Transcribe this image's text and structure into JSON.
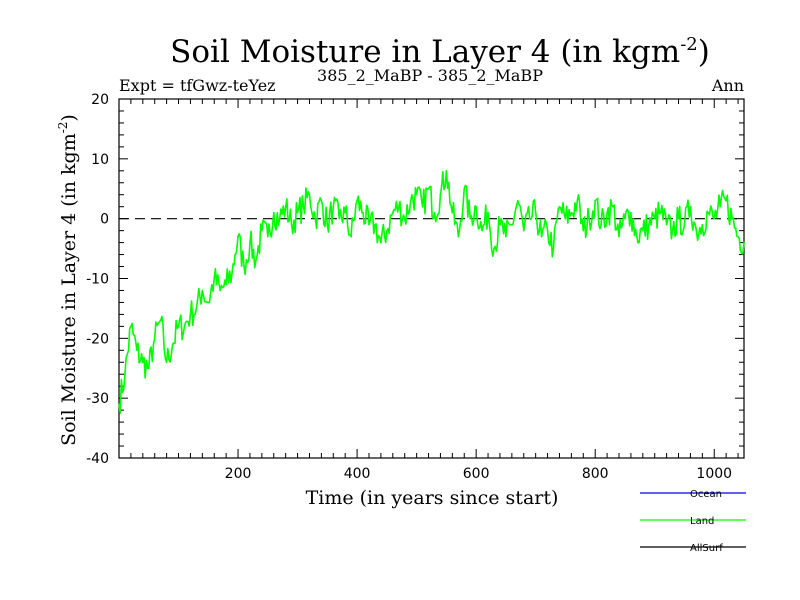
{
  "chart_data": {
    "type": "line",
    "title": "Soil Moisture in Layer 4 (in kgm",
    "title_sup": "-2",
    "title_close": ")",
    "subtitle_left": "Expt = tfGwz-teYez",
    "subtitle_center": "385_2_MaBP - 385_2_MaBP",
    "subtitle_right": "Ann",
    "xlabel": "Time (in years since start)",
    "ylabel": "Soil Moisture in Layer 4 (in kgm",
    "ylabel_sup": "-2",
    "ylabel_close": ")",
    "xlim": [
      0,
      1050
    ],
    "ylim": [
      -40,
      20
    ],
    "xticks": [
      200,
      400,
      600,
      800,
      1000
    ],
    "yticks": [
      20,
      10,
      0,
      -10,
      -20,
      -30,
      -40
    ],
    "reference_line": 0,
    "legend": [
      {
        "name": "Ocean",
        "color": "#0000ff"
      },
      {
        "name": "Land",
        "color": "#00ff00"
      },
      {
        "name": "AllSurf",
        "color": "#000000"
      }
    ],
    "series": [
      {
        "name": "Land",
        "color": "#00ff00",
        "x": [
          0,
          10,
          20,
          30,
          40,
          50,
          60,
          70,
          80,
          90,
          100,
          110,
          120,
          130,
          140,
          150,
          160,
          170,
          180,
          190,
          195,
          200,
          210,
          220,
          230,
          240,
          250,
          260,
          270,
          280,
          290,
          300,
          310,
          320,
          330,
          340,
          350,
          360,
          370,
          380,
          390,
          400,
          410,
          420,
          430,
          440,
          450,
          460,
          470,
          480,
          490,
          500,
          510,
          520,
          530,
          540,
          550,
          560,
          570,
          580,
          590,
          600,
          610,
          620,
          630,
          640,
          650,
          660,
          670,
          680,
          690,
          700,
          710,
          720,
          730,
          740,
          750,
          760,
          770,
          780,
          790,
          800,
          810,
          820,
          830,
          840,
          850,
          860,
          870,
          880,
          890,
          900,
          910,
          920,
          930,
          940,
          950,
          960,
          970,
          980,
          990,
          1000,
          1010,
          1020,
          1030,
          1040,
          1050
        ],
        "values": [
          -31,
          -26,
          -18,
          -22,
          -24,
          -25,
          -20,
          -17,
          -24,
          -21,
          -18,
          -18,
          -16,
          -15,
          -12,
          -14,
          -10,
          -12,
          -11,
          -9,
          -6,
          -3,
          -8,
          -4,
          -7,
          -2,
          -3,
          1,
          0,
          2,
          -1,
          1,
          2,
          4,
          0,
          3,
          -1,
          2,
          0,
          1,
          -3,
          3,
          1,
          -1,
          -1,
          -4,
          -2,
          1,
          2,
          0,
          3,
          4,
          2,
          5,
          1,
          4,
          8,
          1,
          -3,
          5,
          0,
          2,
          -2,
          1,
          -5,
          -1,
          -3,
          -1,
          3,
          -2,
          0,
          1,
          -3,
          -2,
          -5,
          2,
          0,
          1,
          3,
          -2,
          0,
          3,
          -1,
          1,
          2,
          -3,
          0,
          1,
          -3,
          -2,
          -1,
          0,
          1,
          -1,
          -2,
          0,
          -1,
          2,
          -2,
          -1,
          1,
          0,
          2,
          3,
          0,
          -3,
          -4
        ]
      }
    ]
  }
}
